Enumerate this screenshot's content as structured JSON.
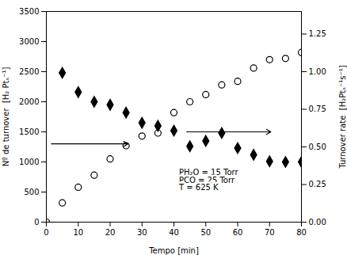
{
  "chart_data": {
    "type": "scatter",
    "xlabel": "Tempo [min]",
    "ylabel": "Nº de turnover  [H₂ Ptₛ⁻¹]",
    "y2label": "Turnover rate  [H₂Ptₛ⁻¹s⁻¹]",
    "xlim": [
      0,
      80
    ],
    "xticks": [
      0,
      10,
      20,
      30,
      40,
      50,
      60,
      70,
      80
    ],
    "ylim": [
      0,
      3500
    ],
    "yticks": [
      0,
      500,
      1000,
      1500,
      2000,
      2500,
      3000,
      3500
    ],
    "y2lim": [
      0,
      1.4
    ],
    "y2ticks": [
      {
        "value": 0,
        "label": "0.00"
      },
      {
        "value": 0.25,
        "label": "0.25"
      },
      {
        "value": 0.5,
        "label": "0.50"
      },
      {
        "value": 0.75,
        "label": "0.75"
      },
      {
        "value": 1.0,
        "label": "1.00"
      },
      {
        "value": 1.25,
        "label": "1.25"
      }
    ],
    "grid": false,
    "series": [
      {
        "x": [
          5,
          10,
          15,
          20,
          25,
          30,
          35,
          40,
          45,
          50,
          55,
          60,
          65,
          70,
          75,
          80
        ],
        "values": [
          2480,
          2160,
          2000,
          1950,
          1820,
          1650,
          1600,
          1520,
          1260,
          1350,
          1480,
          1230,
          1120,
          1010,
          1000,
          1000
        ],
        "color": "black",
        "marker": "diamond"
      },
      {
        "x": [
          0,
          5,
          10,
          15,
          20,
          25,
          30,
          35,
          40,
          45,
          50,
          55,
          60,
          65,
          70,
          75,
          80
        ],
        "values": [
          0.0,
          0.128,
          0.232,
          0.312,
          0.42,
          0.508,
          0.572,
          0.592,
          0.728,
          0.8,
          0.848,
          0.912,
          0.936,
          1.024,
          1.08,
          1.088,
          1.128
        ],
        "axis": "y2",
        "color": "black",
        "marker": "open_circle"
      }
    ],
    "annotations": [
      {
        "text": "PH₂O = 15 Torr\nPCO = 25 Torr\nT = 625 K"
      }
    ],
    "arrows": [
      {
        "y": 1300
      },
      {
        "y": 1500
      }
    ]
  }
}
